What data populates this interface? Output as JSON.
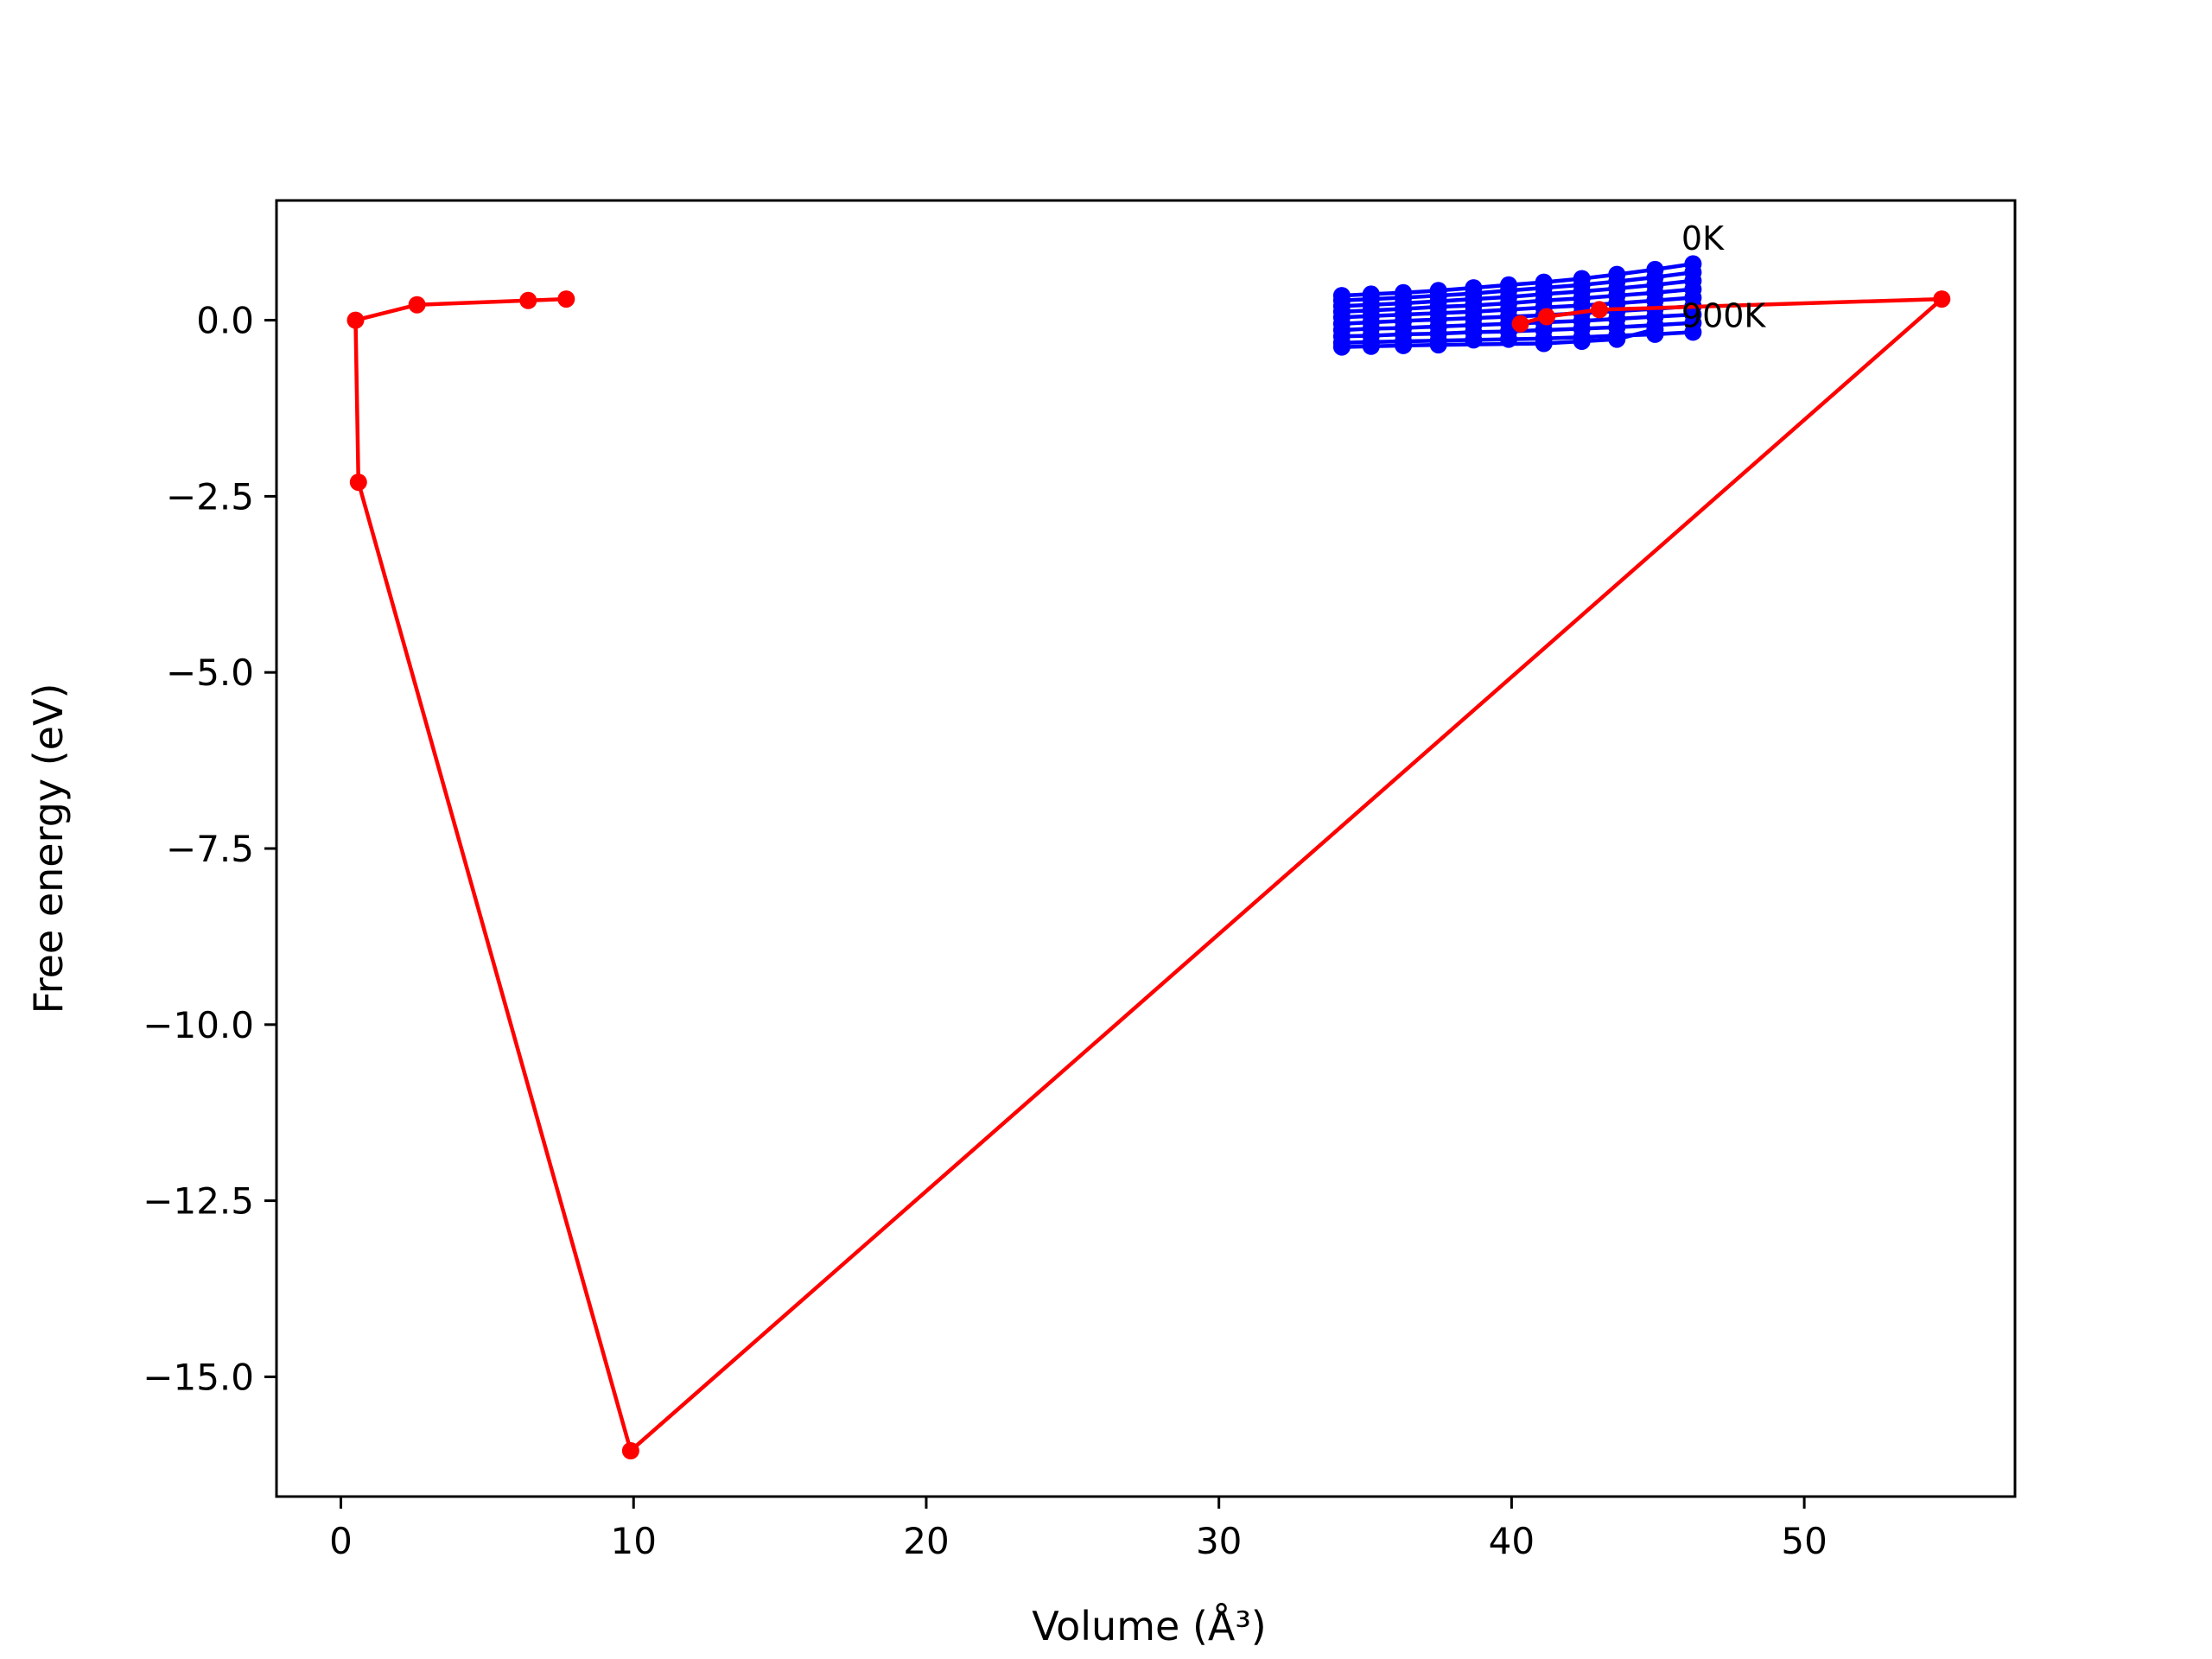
{
  "chart_data": {
    "type": "line",
    "title": "",
    "xlabel": "Volume (Å³)",
    "ylabel": "Free energy (eV)",
    "xlim": [
      -2.2,
      57.2
    ],
    "ylim": [
      -16.7,
      1.7
    ],
    "xticks": [
      0,
      10,
      20,
      30,
      40,
      50
    ],
    "xtick_labels": [
      "0",
      "10",
      "20",
      "30",
      "40",
      "50"
    ],
    "yticks": [
      0.0,
      -2.5,
      -5.0,
      -7.5,
      -10.0,
      -12.5,
      -15.0
    ],
    "ytick_labels": [
      "0.0",
      "−2.5",
      "−5.0",
      "−7.5",
      "−10.0",
      "−12.5",
      "−15.0"
    ],
    "grid": false,
    "annotations": [
      {
        "text": "0K",
        "x": 45.8,
        "y": 1.0
      },
      {
        "text": "900K",
        "x": 45.8,
        "y": -0.1
      }
    ],
    "series": [
      {
        "color": "#ff0000",
        "marker": "o",
        "x": [
          7.7,
          6.4,
          2.6,
          0.5,
          0.6,
          9.9,
          54.7,
          43.0,
          41.2,
          40.3
        ],
        "y": [
          0.3,
          0.28,
          0.22,
          0.0,
          -2.3,
          -16.05,
          0.3,
          0.15,
          0.05,
          -0.05
        ]
      },
      {
        "color": "#0000ff",
        "marker": "o",
        "x": [
          34.2,
          35.2,
          36.3,
          37.5,
          38.7,
          39.9,
          41.1,
          42.4,
          43.6,
          44.9,
          46.2
        ],
        "y": [
          0.35,
          0.37,
          0.39,
          0.42,
          0.46,
          0.5,
          0.54,
          0.59,
          0.65,
          0.72,
          0.8
        ]
      },
      {
        "color": "#0000ff",
        "marker": "o",
        "x": [
          34.2,
          35.2,
          36.3,
          37.5,
          38.7,
          39.9,
          41.1,
          42.4,
          43.6,
          44.9,
          46.2
        ],
        "y": [
          0.28,
          0.3,
          0.32,
          0.35,
          0.38,
          0.42,
          0.46,
          0.5,
          0.55,
          0.61,
          0.68
        ]
      },
      {
        "color": "#0000ff",
        "marker": "o",
        "x": [
          34.2,
          35.2,
          36.3,
          37.5,
          38.7,
          39.9,
          41.1,
          42.4,
          43.6,
          44.9,
          46.2
        ],
        "y": [
          0.2,
          0.22,
          0.24,
          0.27,
          0.3,
          0.33,
          0.37,
          0.41,
          0.45,
          0.5,
          0.56
        ]
      },
      {
        "color": "#0000ff",
        "marker": "o",
        "x": [
          34.2,
          35.2,
          36.3,
          37.5,
          38.7,
          39.9,
          41.1,
          42.4,
          43.6,
          44.9,
          46.2
        ],
        "y": [
          0.12,
          0.14,
          0.16,
          0.19,
          0.21,
          0.24,
          0.28,
          0.31,
          0.35,
          0.39,
          0.44
        ]
      },
      {
        "color": "#0000ff",
        "marker": "o",
        "x": [
          34.2,
          35.2,
          36.3,
          37.5,
          38.7,
          39.9,
          41.1,
          42.4,
          43.6,
          44.9,
          46.2
        ],
        "y": [
          0.04,
          0.06,
          0.08,
          0.1,
          0.12,
          0.15,
          0.18,
          0.21,
          0.24,
          0.28,
          0.32
        ]
      },
      {
        "color": "#0000ff",
        "marker": "o",
        "x": [
          34.2,
          35.2,
          36.3,
          37.5,
          38.7,
          39.9,
          41.1,
          42.4,
          43.6,
          44.9,
          46.2
        ],
        "y": [
          -0.05,
          -0.03,
          -0.01,
          0.01,
          0.03,
          0.05,
          0.07,
          0.1,
          0.13,
          0.16,
          0.2
        ]
      },
      {
        "color": "#0000ff",
        "marker": "o",
        "x": [
          34.2,
          35.2,
          36.3,
          37.5,
          38.7,
          39.9,
          41.1,
          42.4,
          43.6,
          44.9,
          46.2
        ],
        "y": [
          -0.14,
          -0.12,
          -0.11,
          -0.09,
          -0.07,
          -0.05,
          -0.03,
          -0.01,
          0.02,
          0.05,
          0.08
        ]
      },
      {
        "color": "#0000ff",
        "marker": "o",
        "x": [
          34.2,
          35.2,
          36.3,
          37.5,
          38.7,
          39.9,
          41.1,
          42.4,
          43.6,
          44.9,
          46.2
        ],
        "y": [
          -0.23,
          -0.22,
          -0.2,
          -0.19,
          -0.17,
          -0.16,
          -0.14,
          -0.12,
          -0.1,
          -0.07,
          -0.04
        ]
      },
      {
        "color": "#0000ff",
        "marker": "o",
        "x": [
          34.2,
          35.2,
          36.3,
          37.5,
          38.7,
          39.9,
          41.1,
          42.4,
          43.6,
          44.9,
          46.2
        ],
        "y": [
          -0.32,
          -0.31,
          -0.3,
          -0.29,
          -0.28,
          -0.27,
          -0.26,
          -0.24,
          -0.22,
          -0.2,
          -0.17
        ]
      },
      {
        "color": "#0000ff",
        "marker": "o",
        "x": [
          34.2,
          35.2,
          36.3,
          37.5,
          41.1,
          42.4,
          43.6,
          44.9
        ],
        "y": [
          -0.38,
          -0.37,
          -0.36,
          -0.35,
          -0.33,
          -0.3,
          -0.27,
          -0.13
        ]
      }
    ]
  }
}
